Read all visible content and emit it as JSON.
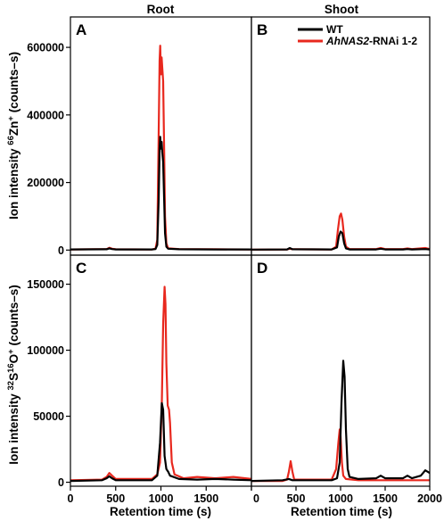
{
  "colors": {
    "wt": "#000000",
    "rnai": "#e8281e"
  },
  "titles": {
    "left": "Root",
    "right": "Shoot"
  },
  "ylabel_top": {
    "main": "Ion intensity ",
    "sup1": "66",
    "mid": "Zn",
    "sup2": "+",
    "tail": " (counts–s)"
  },
  "ylabel_bottom": {
    "main": "Ion intensity ",
    "sup1": "32",
    "mid": "S",
    "sup2": "16",
    "mid2": "O",
    "sup3": "+",
    "tail": " (counts–s)"
  },
  "xlabel": "Retention time (s)",
  "legend": {
    "wt": "WT",
    "rnai_italic": "AhNAS2",
    "rnai_rest": "-RNAi 1-2"
  },
  "chart_data": [
    {
      "panel": "A",
      "type": "line",
      "xlim": [
        0,
        2000
      ],
      "ylim": [
        -15000,
        690000
      ],
      "yticks": [
        0,
        200000,
        400000,
        600000
      ],
      "series": [
        {
          "name": "WT",
          "points": [
            [
              0,
              2000
            ],
            [
              400,
              2500
            ],
            [
              430,
              5000
            ],
            [
              460,
              3000
            ],
            [
              500,
              2000
            ],
            [
              900,
              2000
            ],
            [
              940,
              3000
            ],
            [
              960,
              15000
            ],
            [
              975,
              150000
            ],
            [
              985,
              300000
            ],
            [
              992,
              335000
            ],
            [
              1000,
              300000
            ],
            [
              1008,
              320000
            ],
            [
              1015,
              290000
            ],
            [
              1025,
              260000
            ],
            [
              1035,
              150000
            ],
            [
              1045,
              50000
            ],
            [
              1060,
              10000
            ],
            [
              1080,
              4000
            ],
            [
              1200,
              2500
            ],
            [
              1600,
              2000
            ],
            [
              2000,
              2000
            ]
          ]
        },
        {
          "name": "AhNAS2-RNAi 1-2",
          "points": [
            [
              0,
              2000
            ],
            [
              400,
              3000
            ],
            [
              430,
              7000
            ],
            [
              460,
              4000
            ],
            [
              500,
              2500
            ],
            [
              900,
              2000
            ],
            [
              940,
              4000
            ],
            [
              960,
              30000
            ],
            [
              975,
              350000
            ],
            [
              985,
              560000
            ],
            [
              992,
              605000
            ],
            [
              1000,
              520000
            ],
            [
              1008,
              570000
            ],
            [
              1015,
              540000
            ],
            [
              1025,
              500000
            ],
            [
              1035,
              300000
            ],
            [
              1045,
              100000
            ],
            [
              1060,
              20000
            ],
            [
              1080,
              5000
            ],
            [
              1200,
              3000
            ],
            [
              1600,
              2500
            ],
            [
              2000,
              2000
            ]
          ]
        }
      ]
    },
    {
      "panel": "B",
      "type": "line",
      "xlim": [
        0,
        2000
      ],
      "ylim": [
        -15000,
        690000
      ],
      "series": [
        {
          "name": "WT",
          "points": [
            [
              0,
              1500
            ],
            [
              400,
              2000
            ],
            [
              430,
              6000
            ],
            [
              460,
              2500
            ],
            [
              900,
              2000
            ],
            [
              960,
              8000
            ],
            [
              980,
              40000
            ],
            [
              1000,
              55000
            ],
            [
              1020,
              50000
            ],
            [
              1040,
              20000
            ],
            [
              1060,
              5000
            ],
            [
              1100,
              2000
            ],
            [
              1400,
              2000
            ],
            [
              1450,
              4000
            ],
            [
              1500,
              2000
            ],
            [
              1700,
              2000
            ],
            [
              1750,
              3000
            ],
            [
              1800,
              2000
            ],
            [
              1950,
              3000
            ],
            [
              2000,
              2000
            ]
          ]
        },
        {
          "name": "AhNAS2-RNAi 1-2",
          "points": [
            [
              0,
              1500
            ],
            [
              400,
              2000
            ],
            [
              430,
              4000
            ],
            [
              460,
              2500
            ],
            [
              900,
              2000
            ],
            [
              950,
              10000
            ],
            [
              970,
              60000
            ],
            [
              990,
              100000
            ],
            [
              1005,
              108000
            ],
            [
              1020,
              90000
            ],
            [
              1040,
              40000
            ],
            [
              1060,
              10000
            ],
            [
              1100,
              3000
            ],
            [
              1400,
              3000
            ],
            [
              1450,
              6000
            ],
            [
              1500,
              3000
            ],
            [
              1700,
              3000
            ],
            [
              1750,
              5000
            ],
            [
              1800,
              3000
            ],
            [
              1950,
              6000
            ],
            [
              2000,
              3000
            ]
          ]
        }
      ]
    },
    {
      "panel": "C",
      "type": "line",
      "xlim": [
        0,
        2000
      ],
      "ylim": [
        -3000,
        172000
      ],
      "yticks": [
        0,
        50000,
        100000,
        150000
      ],
      "series": [
        {
          "name": "WT",
          "points": [
            [
              0,
              1000
            ],
            [
              350,
              1500
            ],
            [
              400,
              3000
            ],
            [
              430,
              4500
            ],
            [
              460,
              3000
            ],
            [
              500,
              1500
            ],
            [
              900,
              1500
            ],
            [
              960,
              5000
            ],
            [
              990,
              30000
            ],
            [
              1010,
              60000
            ],
            [
              1025,
              55000
            ],
            [
              1040,
              20000
            ],
            [
              1060,
              10000
            ],
            [
              1080,
              8000
            ],
            [
              1100,
              5000
            ],
            [
              1200,
              2500
            ],
            [
              1400,
              2000
            ],
            [
              1600,
              2500
            ],
            [
              1800,
              2000
            ],
            [
              2000,
              1500
            ]
          ]
        },
        {
          "name": "AhNAS2-RNAi 1-2",
          "points": [
            [
              0,
              1500
            ],
            [
              350,
              2000
            ],
            [
              400,
              4000
            ],
            [
              430,
              7000
            ],
            [
              460,
              5000
            ],
            [
              500,
              2500
            ],
            [
              900,
              2500
            ],
            [
              960,
              6000
            ],
            [
              990,
              15000
            ],
            [
              1010,
              60000
            ],
            [
              1025,
              120000
            ],
            [
              1040,
              148000
            ],
            [
              1050,
              135000
            ],
            [
              1060,
              90000
            ],
            [
              1075,
              58000
            ],
            [
              1090,
              55000
            ],
            [
              1100,
              45000
            ],
            [
              1120,
              15000
            ],
            [
              1150,
              6000
            ],
            [
              1250,
              3000
            ],
            [
              1400,
              4000
            ],
            [
              1600,
              3000
            ],
            [
              1800,
              4000
            ],
            [
              2000,
              2500
            ]
          ]
        }
      ]
    },
    {
      "panel": "D",
      "type": "line",
      "xlim": [
        0,
        2000
      ],
      "ylim": [
        -3000,
        172000
      ],
      "series": [
        {
          "name": "WT",
          "points": [
            [
              0,
              1000
            ],
            [
              350,
              1500
            ],
            [
              420,
              2500
            ],
            [
              460,
              1500
            ],
            [
              900,
              1500
            ],
            [
              960,
              3000
            ],
            [
              990,
              15000
            ],
            [
              1010,
              60000
            ],
            [
              1030,
              92000
            ],
            [
              1045,
              80000
            ],
            [
              1060,
              40000
            ],
            [
              1080,
              10000
            ],
            [
              1100,
              4000
            ],
            [
              1200,
              2500
            ],
            [
              1400,
              3000
            ],
            [
              1450,
              5000
            ],
            [
              1500,
              3000
            ],
            [
              1700,
              3000
            ],
            [
              1750,
              5000
            ],
            [
              1800,
              3000
            ],
            [
              1900,
              5000
            ],
            [
              1950,
              9000
            ],
            [
              2000,
              7000
            ]
          ]
        },
        {
          "name": "AhNAS2-RNAi 1-2",
          "points": [
            [
              0,
              1000
            ],
            [
              350,
              1000
            ],
            [
              400,
              2000
            ],
            [
              420,
              8000
            ],
            [
              440,
              16000
            ],
            [
              460,
              8000
            ],
            [
              480,
              2000
            ],
            [
              900,
              2000
            ],
            [
              950,
              10000
            ],
            [
              975,
              30000
            ],
            [
              990,
              40000
            ],
            [
              1000,
              35000
            ],
            [
              1015,
              15000
            ],
            [
              1030,
              5000
            ],
            [
              1060,
              2500
            ],
            [
              1200,
              1500
            ],
            [
              1400,
              1500
            ],
            [
              1800,
              1500
            ],
            [
              2000,
              1500
            ]
          ]
        }
      ]
    }
  ],
  "xticks": [
    0,
    500,
    1000,
    1500,
    2000
  ]
}
